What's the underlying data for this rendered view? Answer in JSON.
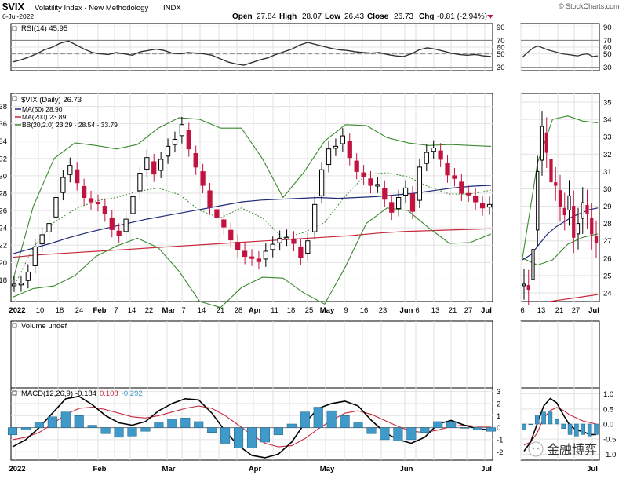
{
  "header": {
    "symbol": "$VIX",
    "name": "Volatility Index - New Methodology",
    "exchange": "INDX",
    "date": "6-Jul-2022",
    "copyright": "© StockCharts.com",
    "open_label": "Open",
    "open": "27.84",
    "high_label": "High",
    "high": "28.07",
    "low_label": "Low",
    "low": "26.43",
    "close_label": "Close",
    "close": "26.73",
    "chg_label": "Chg",
    "chg": "-0.81 (-2.94%)"
  },
  "watermark": "金融博弈",
  "colors": {
    "up": "#000000",
    "down": "#c2123f",
    "ma50": "#1f2a7a",
    "ma200": "#c8283c",
    "bb": "#3a8a2e",
    "macd_hist": "#3f9ac9",
    "rsi": "#333333"
  },
  "chart_data": [
    {
      "id": "rsi",
      "type": "line",
      "title": "RSI(14) 45.95",
      "yticks": [
        30,
        50,
        60,
        70,
        90
      ],
      "ylim": [
        25,
        95
      ],
      "reference_lines": [
        30,
        70
      ],
      "dashed_line": 50,
      "series": [
        {
          "name": "RSI(14)",
          "values": [
            38,
            41,
            45,
            50,
            56,
            60,
            66,
            69,
            63,
            57,
            52,
            50,
            49,
            52,
            50,
            48,
            53,
            55,
            57,
            55,
            51,
            50,
            52,
            51,
            50,
            48,
            43,
            38,
            35,
            33,
            37,
            41,
            44,
            49,
            53,
            57,
            63,
            67,
            64,
            61,
            58,
            56,
            55,
            53,
            52,
            51,
            52,
            49,
            47,
            46,
            50,
            56,
            59,
            57,
            54,
            51,
            49,
            48,
            49,
            47,
            46
          ]
        }
      ]
    },
    {
      "id": "price",
      "type": "candlestick",
      "title": "$VIX (Daily) 26.73",
      "x_tick_labels": [
        "2022",
        "10",
        "18",
        "24",
        "Feb",
        "7",
        "14",
        "22",
        "Mar",
        "7",
        "14",
        "21",
        "28",
        "Apr",
        "11",
        "18",
        "25",
        "May",
        "9",
        "16",
        "23",
        "Jun",
        "6",
        "13",
        "21",
        "27",
        "Jul"
      ],
      "yticks": [
        18,
        20,
        22,
        24,
        26,
        28,
        30,
        32,
        34,
        36,
        38
      ],
      "ylim": [
        15.5,
        39.5
      ],
      "close": [
        17.5,
        17.6,
        18.9,
        21.8,
        23.2,
        24.5,
        27.5,
        29.8,
        31.2,
        29.2,
        27.5,
        27.0,
        26.8,
        25.6,
        23.8,
        23.1,
        25.0,
        27.6,
        30.3,
        32.1,
        30.2,
        31.9,
        33.4,
        34.2,
        35.9,
        33.1,
        31.0,
        28.9,
        26.4,
        25.2,
        24.1,
        22.6,
        21.5,
        20.7,
        20.5,
        20.1,
        21.3,
        22.1,
        22.8,
        22.9,
        22.2,
        20.6,
        22.5,
        26.7,
        30.7,
        33.1,
        33.4,
        34.6,
        32.1,
        30.5,
        29.9,
        28.9,
        29.0,
        27.3,
        25.8,
        27.5,
        28.6,
        25.9,
        31.0,
        32.7,
        33.2,
        31.9,
        30.1,
        29.7,
        28.0,
        27.9,
        27.0,
        26.3,
        26.7
      ],
      "series": [
        {
          "name": "MA(50) 28.90",
          "values": [
            21.0,
            21.6,
            22.2,
            22.9,
            23.5,
            24.0,
            24.5,
            25.0,
            25.4,
            25.8,
            26.2,
            26.6,
            27.0,
            27.2,
            27.3,
            27.4,
            27.5,
            27.4,
            27.5,
            27.6,
            27.8,
            28.0,
            28.3,
            28.6,
            28.8,
            28.9
          ]
        },
        {
          "name": "MA(200) 23.89",
          "values": [
            20.6,
            20.9,
            21.1,
            21.3,
            21.5,
            21.7,
            21.9,
            22.1,
            22.3,
            22.5,
            22.7,
            22.9,
            23.1,
            23.4,
            23.6,
            23.7,
            23.8,
            23.9
          ]
        },
        {
          "name": "BB(20,2.0) 23.29 - 28.54 - 33.79",
          "upper": [
            17.8,
            26.5,
            32.0,
            33.8,
            33.5,
            33.1,
            33.6,
            35.5,
            36.7,
            36.5,
            35.5,
            35.5,
            32.0,
            27.5,
            30.4,
            34.0,
            35.9,
            35.8,
            34.4,
            33.8,
            33.5,
            33.6,
            33.5,
            33.4
          ],
          "lower": [
            16.0,
            17.0,
            17.3,
            18.5,
            20.7,
            21.9,
            22.8,
            21.7,
            19.0,
            15.5,
            14.8,
            17.1,
            18.3,
            18.2,
            16.5,
            15.2,
            19.5,
            24.5,
            26.3,
            26.0,
            24.0,
            22.2,
            22.3,
            23.3
          ]
        }
      ]
    },
    {
      "id": "volume",
      "type": "bar",
      "title": "Volume undef",
      "values": []
    },
    {
      "id": "macd",
      "type": "line",
      "title": "MACD(12,26,9)",
      "macd_value": "-0.184",
      "signal_value": "0.108",
      "hist_value": "-0.292",
      "yticks": [
        -2,
        -1,
        0,
        1,
        2,
        3
      ],
      "ylim": [
        -2.7,
        3.3
      ],
      "series": [
        {
          "name": "MACD",
          "values": [
            -1.6,
            -1.0,
            0.0,
            1.2,
            2.4,
            2.6,
            1.9,
            1.0,
            0.4,
            0.2,
            0.5,
            1.4,
            2.0,
            2.4,
            2.3,
            1.2,
            -0.3,
            -1.5,
            -2.3,
            -2.5,
            -2.2,
            -1.2,
            0.4,
            1.6,
            2.0,
            2.2,
            1.8,
            0.6,
            -0.4,
            -1.0,
            -1.3,
            -0.8,
            0.3,
            0.6,
            0.2,
            -0.1,
            -0.2
          ]
        },
        {
          "name": "Signal",
          "values": [
            -1.0,
            -0.8,
            -0.4,
            0.3,
            1.1,
            1.6,
            1.7,
            1.5,
            1.2,
            0.9,
            0.8,
            1.0,
            1.3,
            1.6,
            1.8,
            1.6,
            1.0,
            0.2,
            -0.6,
            -1.3,
            -1.6,
            -1.5,
            -0.9,
            -0.1,
            0.6,
            1.2,
            1.4,
            1.1,
            0.6,
            0.1,
            -0.3,
            -0.4,
            -0.2,
            0.1,
            0.2,
            0.1,
            0.1
          ]
        }
      ]
    },
    {
      "id": "rsi_zoom",
      "type": "line",
      "yticks": [
        30,
        50,
        60,
        70,
        90
      ],
      "series": [
        {
          "name": "RSI",
          "values": [
            45,
            52,
            58,
            62,
            59,
            56,
            54,
            52,
            50,
            49,
            48,
            47,
            49,
            50,
            46,
            47
          ]
        }
      ]
    },
    {
      "id": "price_zoom",
      "type": "candlestick",
      "x_tick_labels": [
        "6",
        "13",
        "21",
        "27",
        "Jul"
      ],
      "yticks": [
        24,
        25,
        26,
        27,
        28,
        29,
        30,
        31,
        32,
        33,
        34,
        35
      ],
      "ylim": [
        23.5,
        35.5
      ],
      "close": [
        24.5,
        24.2,
        26.5,
        31.0,
        33.6,
        32.1,
        30.4,
        30.2,
        29.0,
        28.5,
        29.6,
        27.2,
        28.0,
        29.2,
        28.6,
        27.4,
        26.9
      ],
      "series": [
        {
          "name": "MA50",
          "values": [
            25.9,
            26.2,
            26.8,
            27.4,
            27.8,
            28.1,
            28.4,
            28.6,
            28.8,
            28.9
          ]
        },
        {
          "name": "MA200",
          "values": [
            23.5,
            23.6,
            23.7,
            23.8,
            23.9
          ]
        },
        {
          "name": "BB upper",
          "upper": [
            26.0,
            31.5,
            34.0,
            34.2,
            33.9,
            33.8
          ]
        },
        {
          "name": "BB lower",
          "lower": [
            26.0,
            25.6,
            25.9,
            26.8,
            27.2,
            27.4
          ]
        }
      ]
    },
    {
      "id": "macd_zoom",
      "type": "line",
      "yticks": [
        "1.0",
        "0.5",
        "0.0",
        "-0.5",
        "-1.0"
      ],
      "series": [
        {
          "name": "MACD",
          "values": [
            -0.9,
            -0.6,
            0.0,
            0.6,
            0.85,
            0.7,
            0.3,
            -0.05,
            -0.2,
            -0.25,
            -0.35,
            -0.35
          ]
        },
        {
          "name": "Signal",
          "values": [
            -0.7,
            -0.6,
            -0.3,
            0.2,
            0.45,
            0.55,
            0.45,
            0.3,
            0.2,
            0.1,
            0.05,
            0.0
          ]
        }
      ]
    }
  ]
}
